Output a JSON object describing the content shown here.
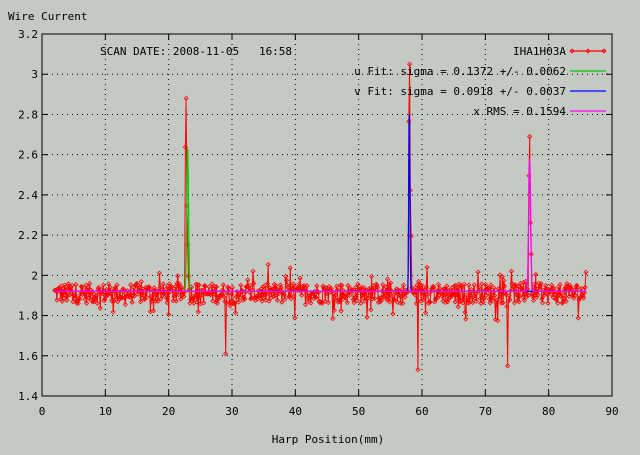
{
  "chart_data": {
    "type": "line",
    "title": "",
    "ylabel": "Wire Current",
    "xlabel": "Harp Position(mm)",
    "xlim": [
      0,
      90
    ],
    "ylim": [
      1.4,
      3.2
    ],
    "xticks": [
      0,
      10,
      20,
      30,
      40,
      50,
      60,
      70,
      80,
      90
    ],
    "yticks": [
      1.4,
      1.6,
      1.8,
      2,
      2.2,
      2.4,
      2.6,
      2.8,
      3,
      3.2
    ],
    "grid": true,
    "legend_position": "top-right",
    "scan_date": "SCAN DATE: 2008-11-05   16:58",
    "colors": {
      "background": "#c4c9c4",
      "data": "#ff0000",
      "u_fit": "#00cc00",
      "v_fit": "#0000ff",
      "x_fit": "#ff00ff"
    },
    "series": [
      {
        "name": "IHA1H03A",
        "kind": "noisy-scan",
        "x_start": 2,
        "x_end": 86,
        "baseline": 1.91,
        "noise_amplitude": 0.05,
        "peaks": [
          {
            "x": 22.8,
            "y": 2.88
          },
          {
            "x": 58.0,
            "y": 3.05
          },
          {
            "x": 77.0,
            "y": 2.69
          }
        ],
        "dips": [
          {
            "x": 29.0,
            "y": 1.61
          },
          {
            "x": 59.4,
            "y": 1.53
          },
          {
            "x": 73.5,
            "y": 1.55
          }
        ]
      },
      {
        "name": "u  Fit: sigma = 0.1372 +/- 0.0062",
        "kind": "gaussian-fit",
        "baseline": 1.92,
        "center": 23.0,
        "amplitude": 0.71,
        "sigma": 0.1372
      },
      {
        "name": "v  Fit: sigma = 0.0918 +/- 0.0037",
        "kind": "gaussian-fit",
        "baseline": 1.92,
        "center": 58.0,
        "amplitude": 0.88,
        "sigma": 0.0918
      },
      {
        "name": "x  RMS  = 0.1594",
        "kind": "gaussian-fit",
        "baseline": 1.92,
        "center": 77.0,
        "amplitude": 0.66,
        "sigma": 0.1594
      }
    ]
  }
}
